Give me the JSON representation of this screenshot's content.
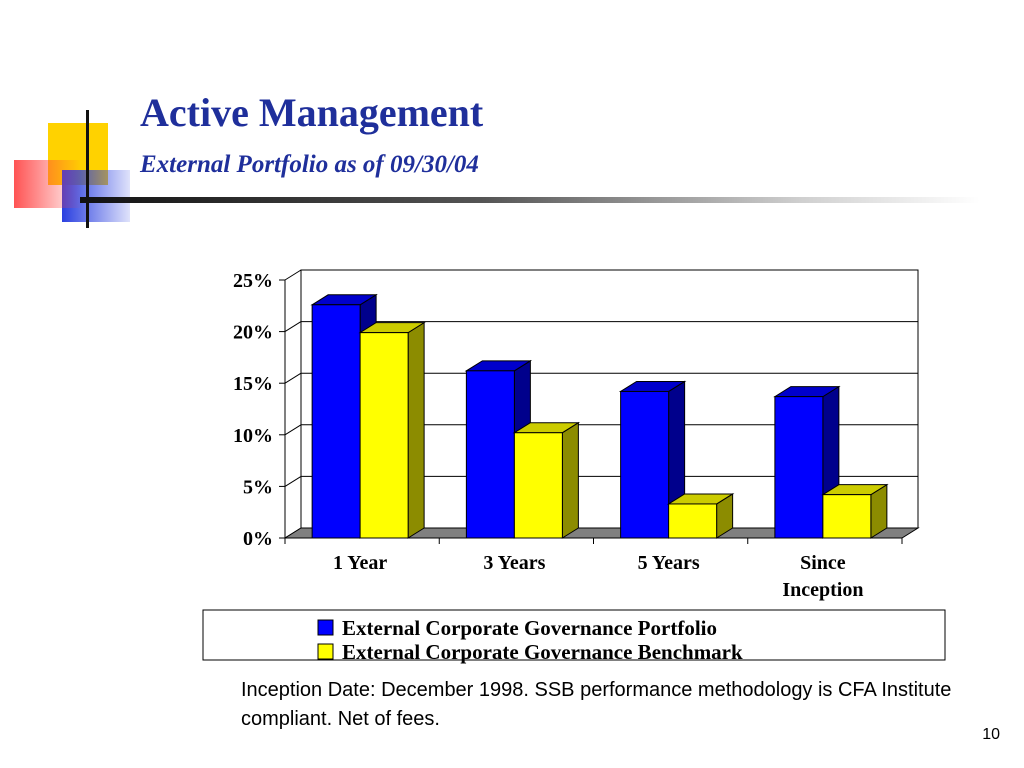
{
  "slide": {
    "title": "Active Management",
    "subtitle": "External Portfolio as of 09/30/04",
    "footnote": "Inception Date:  December 1998. SSB performance methodology is CFA Institute compliant. Net of fees.",
    "page_number": "10"
  },
  "chart_data": {
    "type": "bar",
    "title": "",
    "xlabel": "",
    "ylabel": "",
    "categories": [
      "1 Year",
      "3 Years",
      "5 Years",
      "Since Inception"
    ],
    "series": [
      {
        "name": "External Corporate Governance Portfolio",
        "values": [
          22.6,
          16.2,
          14.2,
          13.7
        ],
        "color": "#0000ff"
      },
      {
        "name": "External Corporate Governance Benchmark",
        "values": [
          19.9,
          10.2,
          3.3,
          4.2
        ],
        "color": "#ffff00"
      }
    ],
    "ylim": [
      0,
      25
    ],
    "yticks": [
      "0%",
      "5%",
      "10%",
      "15%",
      "20%",
      "25%"
    ],
    "grid": true,
    "legend_position": "bottom",
    "three_d": true
  },
  "colors": {
    "title": "#1f2f9b",
    "portfolio": "#0000ff",
    "benchmark": "#ffff00"
  }
}
